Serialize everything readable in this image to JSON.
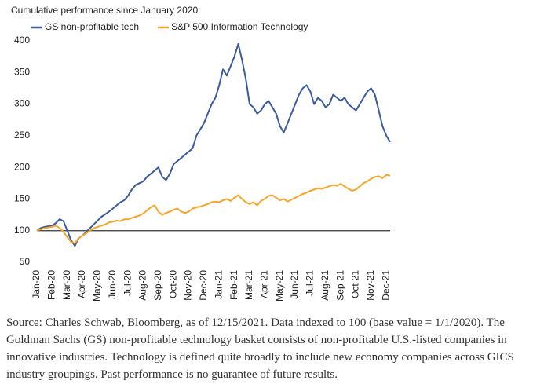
{
  "chart_data": {
    "type": "line",
    "title": "Cumulative performance since January 2020:",
    "categories": [
      "Jan-20",
      null,
      null,
      null,
      "Feb-20",
      null,
      null,
      null,
      "Mar-20",
      null,
      null,
      null,
      "Apr-20",
      null,
      null,
      null,
      "May-20",
      null,
      null,
      null,
      "Jun-20",
      null,
      null,
      null,
      "Jul-20",
      null,
      null,
      null,
      "Aug-20",
      null,
      null,
      null,
      "Sep-20",
      null,
      null,
      null,
      "Oct-20",
      null,
      null,
      null,
      "Nov-20",
      null,
      null,
      null,
      "Dec-20",
      null,
      null,
      null,
      "Jan-21",
      null,
      null,
      null,
      "Feb-21",
      null,
      null,
      null,
      "Mar-21",
      null,
      null,
      null,
      "Apr-21",
      null,
      null,
      null,
      "May-21",
      null,
      null,
      null,
      "Jun-21",
      null,
      null,
      null,
      "Jul-21",
      null,
      null,
      null,
      "Aug-21",
      null,
      null,
      null,
      "Sep-21",
      null,
      null,
      null,
      "Oct-21",
      null,
      null,
      null,
      "Nov-21",
      null,
      null,
      null,
      "Dec-21",
      null
    ],
    "series": [
      {
        "name": "GS non-profitable tech",
        "color": "#3b5b9b",
        "values": [
          100,
          104,
          106,
          107,
          108,
          112,
          118,
          115,
          100,
          85,
          76,
          88,
          92,
          98,
          104,
          110,
          116,
          122,
          126,
          130,
          135,
          140,
          145,
          148,
          155,
          165,
          172,
          175,
          178,
          185,
          190,
          195,
          200,
          185,
          180,
          190,
          205,
          210,
          215,
          220,
          225,
          230,
          250,
          260,
          270,
          285,
          300,
          310,
          330,
          355,
          345,
          360,
          375,
          395,
          370,
          340,
          300,
          295,
          285,
          290,
          300,
          305,
          295,
          285,
          265,
          255,
          270,
          285,
          300,
          315,
          325,
          330,
          320,
          300,
          310,
          305,
          295,
          300,
          315,
          310,
          305,
          310,
          300,
          295,
          290,
          300,
          310,
          320,
          325,
          315,
          290,
          265,
          250,
          240
        ]
      },
      {
        "name": "S&P 500 Information Technology",
        "color": "#f5a52a",
        "values": [
          100,
          102,
          104,
          105,
          106,
          108,
          104,
          98,
          90,
          82,
          80,
          88,
          92,
          96,
          100,
          104,
          106,
          108,
          110,
          113,
          114,
          116,
          115,
          118,
          118,
          120,
          122,
          124,
          127,
          132,
          137,
          140,
          130,
          125,
          128,
          130,
          133,
          135,
          130,
          128,
          130,
          135,
          137,
          138,
          140,
          142,
          145,
          146,
          145,
          148,
          150,
          147,
          152,
          156,
          150,
          145,
          142,
          145,
          140,
          147,
          150,
          155,
          156,
          152,
          148,
          150,
          146,
          149,
          152,
          155,
          158,
          160,
          163,
          165,
          167,
          166,
          168,
          170,
          172,
          171,
          174,
          170,
          166,
          163,
          165,
          170,
          175,
          178,
          182,
          185,
          186,
          183,
          188,
          187
        ]
      }
    ],
    "ylim": [
      50,
      400
    ],
    "yticks": [
      50,
      100,
      150,
      200,
      250,
      300,
      350,
      400
    ],
    "reference_line": 100,
    "footnote": "Source: Charles Schwab, Bloomberg, as of 12/15/2021. Data indexed to 100 (base value = 1/1/2020). The Goldman Sachs (GS) non-profitable technology basket consists of non-profitable U.S.-listed companies in innovative industries. Technology is defined quite broadly to include new economy companies across GICS industry groupings. Past performance is no guarantee of future results."
  }
}
